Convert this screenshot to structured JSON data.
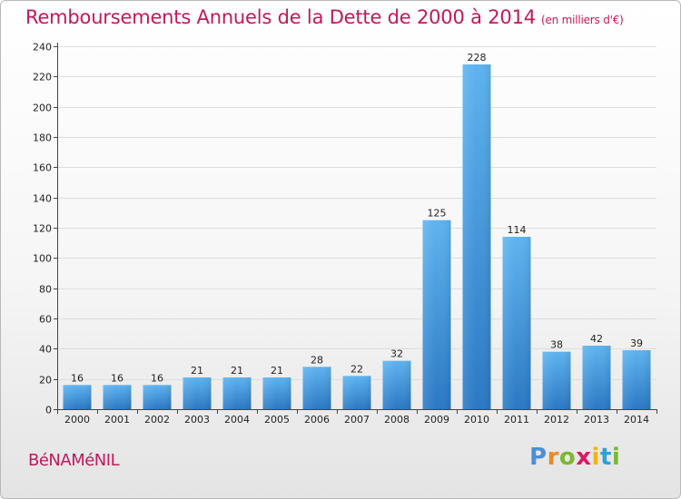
{
  "title": {
    "main": "Remboursements Annuels de la Dette de 2000 à 2014",
    "unit": "(en milliers d'€)"
  },
  "town": "BéNAMéNIL",
  "logo": {
    "letters": [
      {
        "char": "P",
        "color": "#4a90d9"
      },
      {
        "char": "r",
        "color": "#e8892a"
      },
      {
        "char": "o",
        "color": "#7cb82f"
      },
      {
        "char": "x",
        "color": "#d81b60"
      },
      {
        "char": "i",
        "color": "#f2b500"
      },
      {
        "char": "t",
        "color": "#29a3d6"
      },
      {
        "char": "i",
        "color": "#7cb82f"
      }
    ]
  },
  "chart_data": {
    "type": "bar",
    "title": "Remboursements Annuels de la Dette de 2000 à 2014",
    "subtitle": "(en milliers d'€)",
    "categories": [
      "2000",
      "2001",
      "2002",
      "2003",
      "2004",
      "2005",
      "2006",
      "2007",
      "2008",
      "2009",
      "2010",
      "2011",
      "2012",
      "2013",
      "2014"
    ],
    "values": [
      16,
      16,
      16,
      21,
      21,
      21,
      28,
      22,
      32,
      125,
      228,
      114,
      38,
      42,
      39
    ],
    "ylim": [
      0,
      240
    ],
    "yticks": [
      0,
      20,
      40,
      60,
      80,
      100,
      120,
      140,
      160,
      180,
      200,
      220,
      240
    ],
    "grid": true,
    "bar_color": "#3d9be4"
  }
}
